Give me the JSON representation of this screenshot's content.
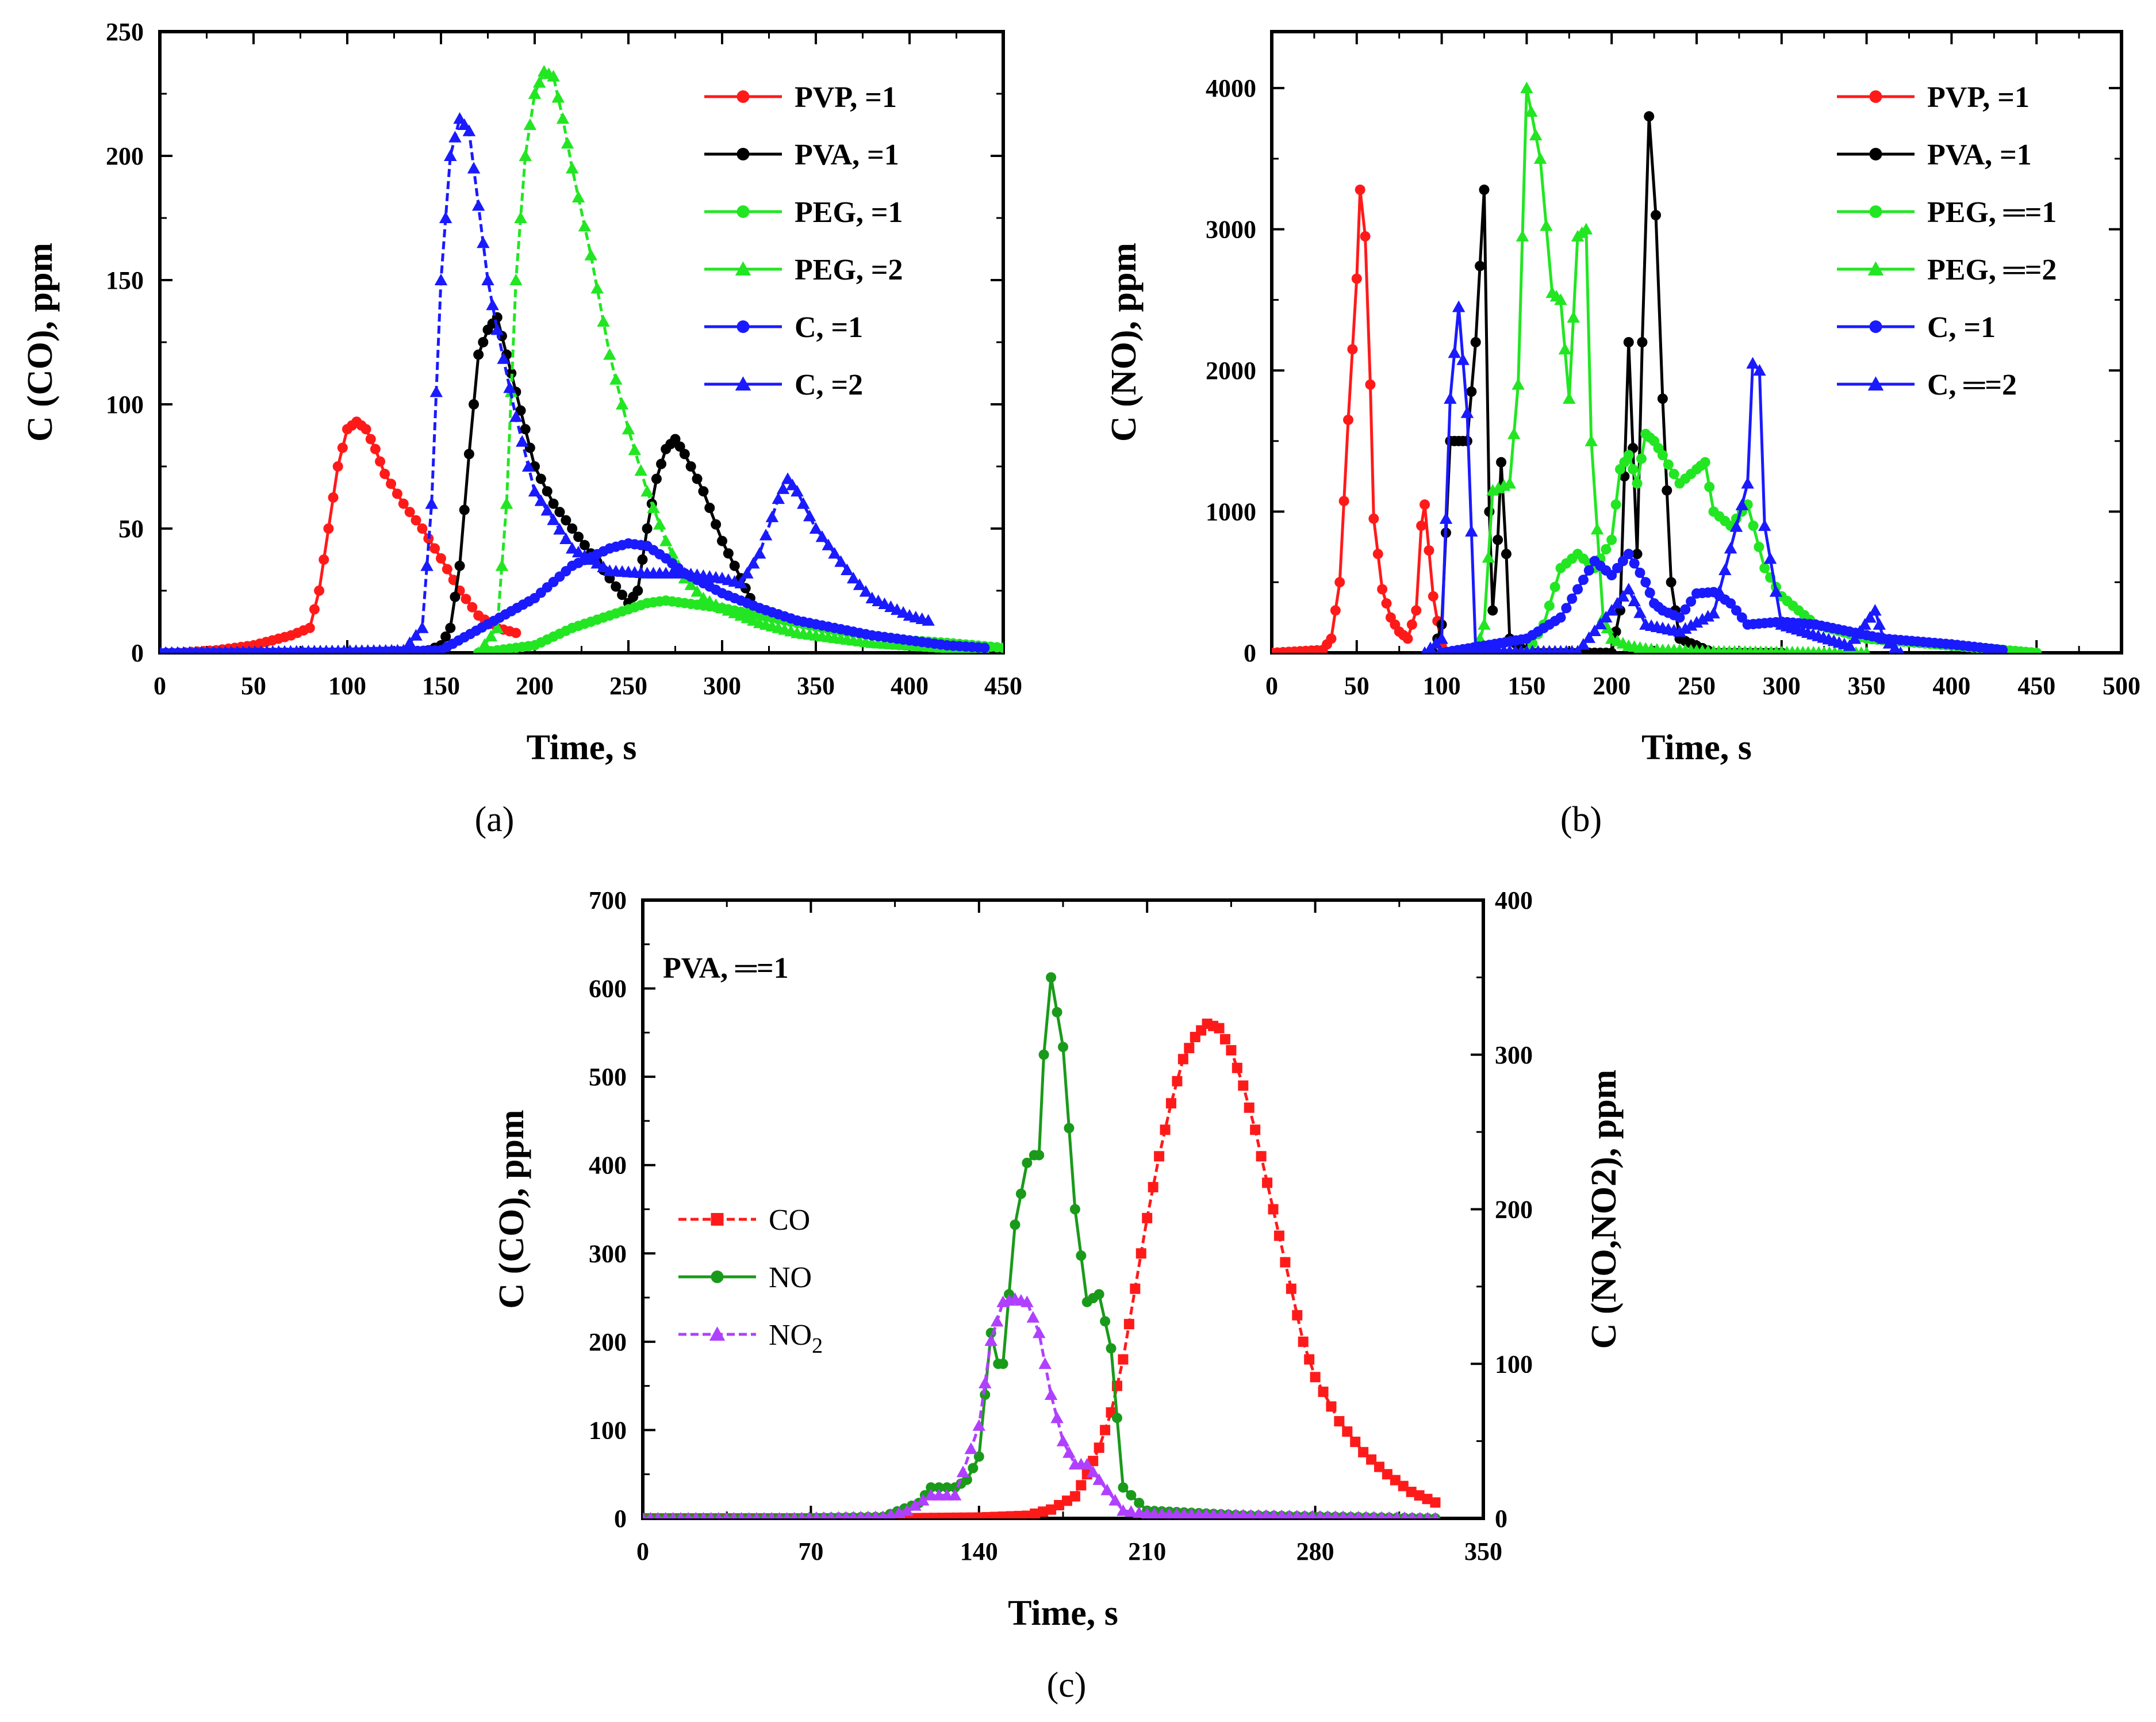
{
  "panel_labels": [
    "(a)",
    "(b)",
    "(c)"
  ],
  "colors": {
    "red": "#ff1a1a",
    "black": "#000000",
    "green": "#22e622",
    "blue": "#1a1aff",
    "darkgreen": "#1a9a1a",
    "purple": "#b040ff",
    "pvp": "#ff1a1a",
    "pva": "#000000",
    "peg": "#22e622",
    "c": "#1a1aff"
  },
  "chart_data": [
    {
      "id": "a",
      "type": "line",
      "xlabel": "Time, s",
      "ylabel": "C (CO), ppm",
      "xlim": [
        0,
        450
      ],
      "ylim": [
        0,
        250
      ],
      "xticks": [
        0,
        50,
        100,
        150,
        200,
        250,
        300,
        350,
        400,
        450
      ],
      "yticks": [
        0,
        50,
        100,
        150,
        200,
        250
      ],
      "legend_position": "top-right",
      "series": [
        {
          "name": "PVP,   =1",
          "color": "red",
          "marker": "circle",
          "dashed": false,
          "x": [
            10,
            30,
            50,
            60,
            70,
            80,
            85,
            90,
            95,
            100,
            105,
            110,
            115,
            120,
            130,
            140,
            150,
            160,
            170,
            180,
            190
          ],
          "y": [
            0,
            1,
            3,
            5,
            7,
            10,
            25,
            50,
            75,
            90,
            93,
            90,
            82,
            72,
            60,
            50,
            38,
            25,
            15,
            10,
            8
          ]
        },
        {
          "name": "PVA,   =1",
          "color": "black",
          "marker": "circle",
          "dashed": false,
          "x": [
            140,
            150,
            155,
            160,
            165,
            170,
            175,
            180,
            185,
            190,
            195,
            200,
            210,
            220,
            230,
            240,
            250,
            255,
            260,
            265,
            270,
            275,
            280,
            290,
            300,
            310,
            315
          ],
          "y": [
            0,
            3,
            10,
            35,
            80,
            120,
            130,
            135,
            120,
            105,
            90,
            75,
            60,
            50,
            40,
            30,
            20,
            25,
            50,
            70,
            82,
            86,
            80,
            65,
            45,
            30,
            22
          ]
        },
        {
          "name": "PEG,   =1",
          "color": "green",
          "marker": "circle",
          "dashed": false,
          "x": [
            170,
            200,
            220,
            240,
            260,
            270,
            280,
            300,
            320,
            340,
            360,
            380,
            400,
            420,
            450
          ],
          "y": [
            0,
            3,
            10,
            15,
            20,
            21,
            20,
            18,
            15,
            12,
            9,
            7,
            5,
            4,
            2
          ]
        },
        {
          "name": "PEG,   =2",
          "color": "green",
          "marker": "triangle",
          "dashed": true,
          "x": [
            170,
            180,
            185,
            190,
            195,
            200,
            205,
            210,
            215,
            220,
            230,
            240,
            250,
            260,
            270,
            280,
            290,
            300,
            320,
            340,
            360,
            380,
            400,
            420,
            440
          ],
          "y": [
            0,
            10,
            60,
            150,
            200,
            225,
            234,
            232,
            215,
            195,
            160,
            120,
            90,
            65,
            45,
            30,
            22,
            18,
            12,
            8,
            6,
            4,
            3,
            2,
            1
          ]
        },
        {
          "name": "C,   =1",
          "color": "blue",
          "marker": "circle",
          "dashed": false,
          "x": [
            0,
            100,
            150,
            200,
            220,
            240,
            250,
            260,
            270,
            280,
            300,
            320,
            340,
            360,
            380,
            400,
            420,
            440
          ],
          "y": [
            0,
            0,
            1,
            22,
            35,
            42,
            44,
            43,
            38,
            32,
            24,
            18,
            13,
            10,
            7,
            5,
            3,
            2
          ]
        },
        {
          "name": "C,   =2",
          "color": "blue",
          "marker": "triangle",
          "dashed": true,
          "x": [
            0,
            130,
            140,
            145,
            150,
            155,
            160,
            165,
            170,
            175,
            180,
            190,
            200,
            220,
            240,
            260,
            280,
            300,
            310,
            320,
            330,
            335,
            340,
            350,
            360,
            370,
            380,
            400,
            410
          ],
          "y": [
            0,
            1,
            10,
            60,
            150,
            200,
            215,
            210,
            180,
            150,
            130,
            95,
            65,
            42,
            33,
            32,
            32,
            30,
            28,
            40,
            62,
            70,
            65,
            50,
            40,
            30,
            22,
            15,
            13
          ]
        }
      ]
    },
    {
      "id": "b",
      "type": "line",
      "xlabel": "Time, s",
      "ylabel": "C (NO), ppm",
      "xlim": [
        0,
        500
      ],
      "ylim": [
        0,
        4400
      ],
      "xticks": [
        0,
        50,
        100,
        150,
        200,
        250,
        300,
        350,
        400,
        450,
        500
      ],
      "yticks": [
        0,
        1000,
        2000,
        3000,
        4000
      ],
      "legend_position": "top-right",
      "series": [
        {
          "name": "PVP,   =1",
          "color": "red",
          "marker": "circle",
          "dashed": false,
          "x": [
            0,
            30,
            35,
            40,
            45,
            50,
            52,
            55,
            58,
            60,
            65,
            70,
            75,
            80,
            85,
            88,
            90,
            95,
            100
          ],
          "y": [
            0,
            20,
            100,
            500,
            1650,
            2650,
            3280,
            2950,
            1900,
            950,
            450,
            250,
            150,
            100,
            300,
            900,
            1050,
            400,
            50
          ]
        },
        {
          "name": "PVA,   =1",
          "color": "black",
          "marker": "circle",
          "dashed": false,
          "x": [
            95,
            100,
            105,
            110,
            115,
            120,
            125,
            128,
            130,
            133,
            135,
            138,
            140,
            150,
            180,
            200,
            205,
            210,
            215,
            218,
            222,
            226,
            230,
            235,
            240,
            260,
            300
          ],
          "y": [
            0,
            200,
            1500,
            1500,
            1500,
            2200,
            3280,
            1000,
            300,
            800,
            1350,
            700,
            100,
            0,
            0,
            0,
            300,
            2200,
            700,
            2200,
            3800,
            3100,
            1800,
            500,
            100,
            0,
            0
          ]
        },
        {
          "name": "PEG, ═=1",
          "color": "green",
          "marker": "circle",
          "dashed": false,
          "x": [
            150,
            160,
            170,
            180,
            190,
            200,
            205,
            210,
            215,
            220,
            225,
            230,
            240,
            250,
            255,
            260,
            270,
            280,
            290,
            300,
            320,
            350,
            400,
            450
          ],
          "y": [
            0,
            200,
            600,
            700,
            600,
            800,
            1300,
            1400,
            1200,
            1550,
            1500,
            1400,
            1200,
            1300,
            1350,
            1000,
            900,
            1050,
            600,
            400,
            200,
            100,
            50,
            0
          ]
        },
        {
          "name": "PEG, ═=2",
          "color": "green",
          "marker": "triangle",
          "dashed": false,
          "x": [
            120,
            125,
            130,
            140,
            145,
            150,
            158,
            165,
            170,
            175,
            180,
            185,
            188,
            195,
            200,
            210,
            220,
            230,
            240,
            260,
            300,
            350
          ],
          "y": [
            0,
            200,
            1150,
            1200,
            1900,
            4000,
            3500,
            2550,
            2500,
            1800,
            2950,
            3000,
            1500,
            250,
            100,
            50,
            30,
            20,
            20,
            10,
            5,
            0
          ]
        },
        {
          "name": "C,   =1",
          "color": "blue",
          "marker": "circle",
          "dashed": false,
          "x": [
            100,
            150,
            170,
            180,
            190,
            200,
            210,
            220,
            225,
            230,
            240,
            250,
            260,
            270,
            280,
            300,
            320,
            340,
            360,
            380,
            400,
            430
          ],
          "y": [
            0,
            100,
            250,
            450,
            650,
            550,
            700,
            500,
            350,
            300,
            250,
            420,
            430,
            350,
            200,
            220,
            200,
            150,
            100,
            80,
            60,
            20
          ]
        },
        {
          "name": "C, ═=2",
          "color": "blue",
          "marker": "triangle",
          "dashed": false,
          "x": [
            90,
            100,
            105,
            110,
            115,
            120,
            150,
            180,
            200,
            210,
            220,
            240,
            260,
            280,
            283,
            287,
            290,
            300,
            340,
            355,
            360,
            370
          ],
          "y": [
            0,
            100,
            1800,
            2450,
            1700,
            20,
            10,
            10,
            300,
            450,
            200,
            150,
            280,
            1200,
            2050,
            2000,
            900,
            200,
            50,
            300,
            100,
            0
          ]
        }
      ]
    },
    {
      "id": "c",
      "type": "line",
      "xlabel": "Time, s",
      "ylabel": "C (CO), ppm",
      "ylabel_right": "C (NO,NO2), ppm",
      "annotation": "PVA, ═=1",
      "xlim": [
        0,
        350
      ],
      "ylim": [
        0,
        700
      ],
      "ylim_right": [
        0,
        400
      ],
      "xticks": [
        0,
        70,
        140,
        210,
        280,
        350
      ],
      "yticks": [
        0,
        100,
        200,
        300,
        400,
        500,
        600,
        700
      ],
      "yticks_right": [
        0,
        100,
        200,
        300,
        400
      ],
      "legend_position": "center-left",
      "series": [
        {
          "name": "CO",
          "legend": "CO",
          "color": "red",
          "marker": "square",
          "dashed": true,
          "axis": "left",
          "x": [
            0,
            100,
            140,
            160,
            170,
            180,
            185,
            190,
            195,
            200,
            205,
            210,
            215,
            220,
            225,
            230,
            235,
            240,
            245,
            250,
            255,
            260,
            265,
            270,
            275,
            280,
            290,
            300,
            310,
            320,
            330
          ],
          "y": [
            0,
            0,
            1,
            3,
            10,
            25,
            50,
            80,
            120,
            180,
            260,
            340,
            410,
            470,
            520,
            545,
            560,
            555,
            530,
            490,
            440,
            380,
            320,
            260,
            200,
            160,
            110,
            75,
            50,
            30,
            18
          ]
        },
        {
          "name": "NO",
          "legend": "NO",
          "color": "darkgreen",
          "marker": "circle",
          "dashed": false,
          "axis": "right",
          "x": [
            0,
            60,
            100,
            115,
            120,
            130,
            135,
            140,
            145,
            148,
            150,
            155,
            160,
            163,
            165,
            167,
            170,
            175,
            180,
            185,
            190,
            195,
            200,
            210,
            250,
            330
          ],
          "y": [
            0,
            0,
            1,
            10,
            20,
            20,
            25,
            40,
            120,
            100,
            100,
            190,
            230,
            235,
            235,
            300,
            350,
            305,
            200,
            140,
            145,
            110,
            20,
            5,
            2,
            0
          ]
        },
        {
          "name": "NO2",
          "legend": "NO",
          "legend_sub": "2",
          "color": "purple",
          "marker": "triangle",
          "dashed": true,
          "axis": "right",
          "x": [
            0,
            60,
            100,
            110,
            120,
            130,
            140,
            145,
            150,
            155,
            160,
            165,
            170,
            175,
            180,
            185,
            190,
            200,
            210,
            250,
            330
          ],
          "y": [
            0,
            0,
            1,
            5,
            15,
            15,
            60,
            115,
            140,
            142,
            140,
            120,
            80,
            50,
            35,
            35,
            25,
            5,
            3,
            2,
            0
          ]
        }
      ]
    }
  ]
}
